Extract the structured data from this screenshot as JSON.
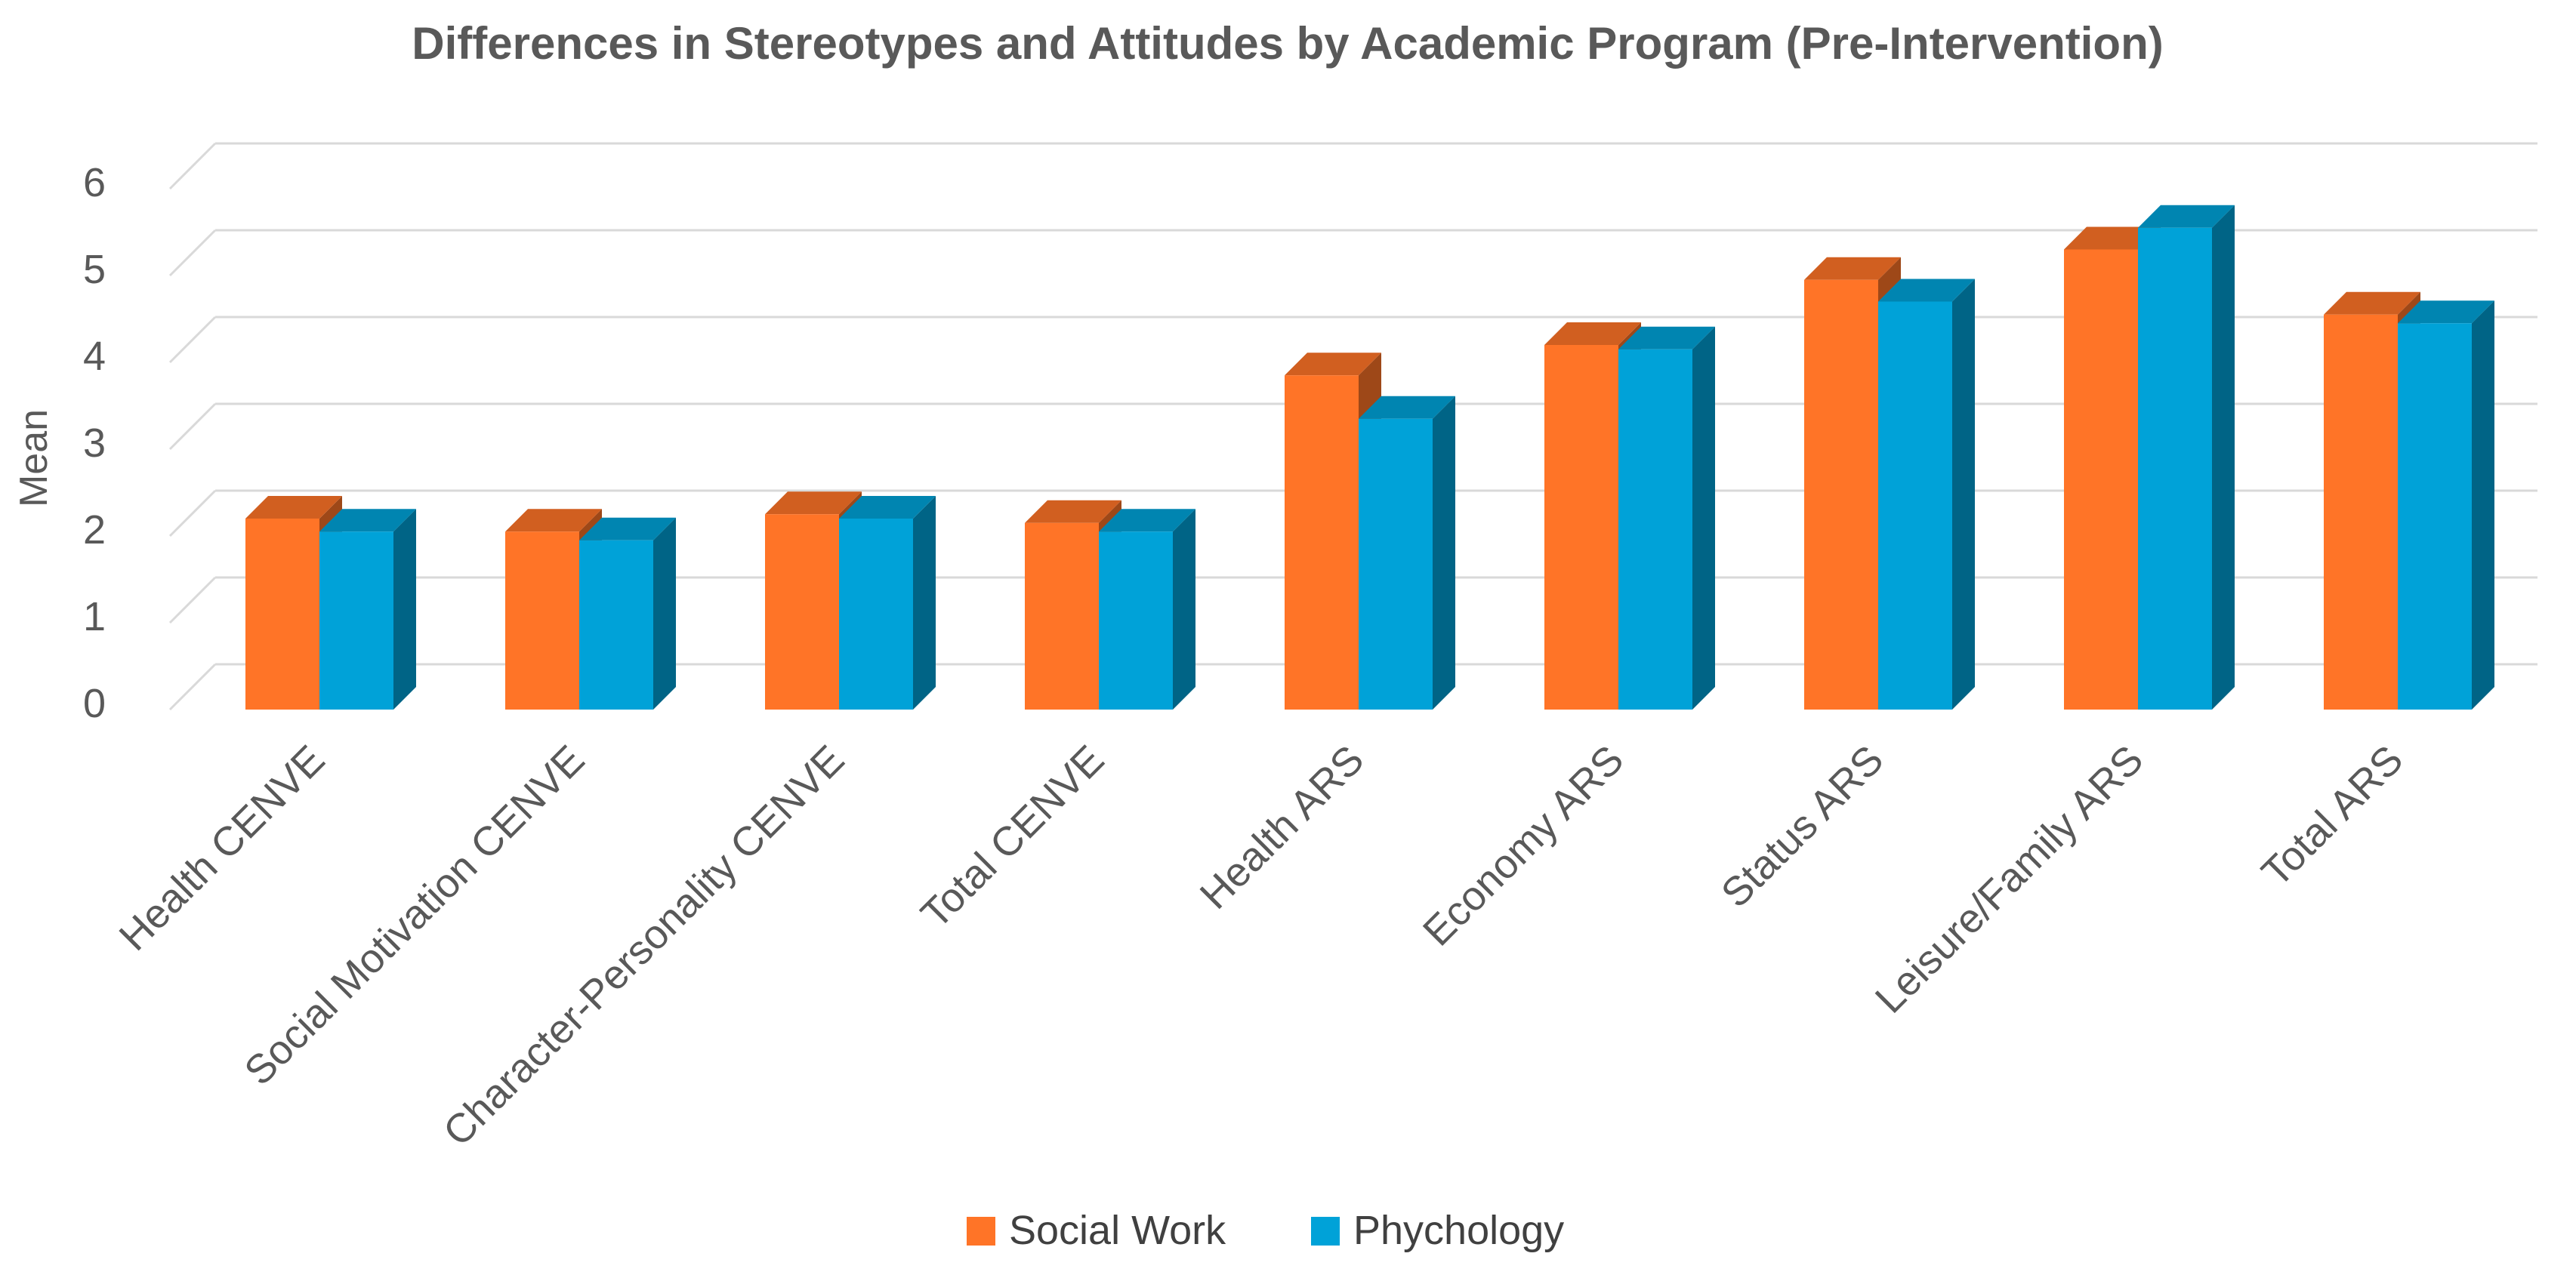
{
  "chart_data": {
    "type": "bar",
    "title": "Differences in Stereotypes and Attitudes by Academic Program (Pre-Intervention)",
    "xlabel": "",
    "ylabel": "Mean",
    "ylim": [
      0,
      6
    ],
    "yticks": [
      "0",
      "1",
      "2",
      "3",
      "4",
      "5",
      "6"
    ],
    "grid": true,
    "legend_position": "bottom",
    "categories": [
      "Health CENVE",
      "Social Motivation CENVE",
      "Character-Personality CENVE",
      "Total CENVE",
      "Health ARS",
      "Economy ARS",
      "Status ARS",
      "Leisure/Family ARS",
      "Total ARS"
    ],
    "series": [
      {
        "name": "Social Work",
        "color": "#FF7427",
        "values": [
          2.2,
          2.05,
          2.25,
          2.15,
          3.85,
          4.2,
          4.95,
          5.3,
          4.55
        ]
      },
      {
        "name": "Phychology",
        "color": "#00A2D8",
        "values": [
          2.05,
          1.95,
          2.2,
          2.05,
          3.35,
          4.15,
          4.7,
          5.55,
          4.45
        ]
      }
    ]
  }
}
